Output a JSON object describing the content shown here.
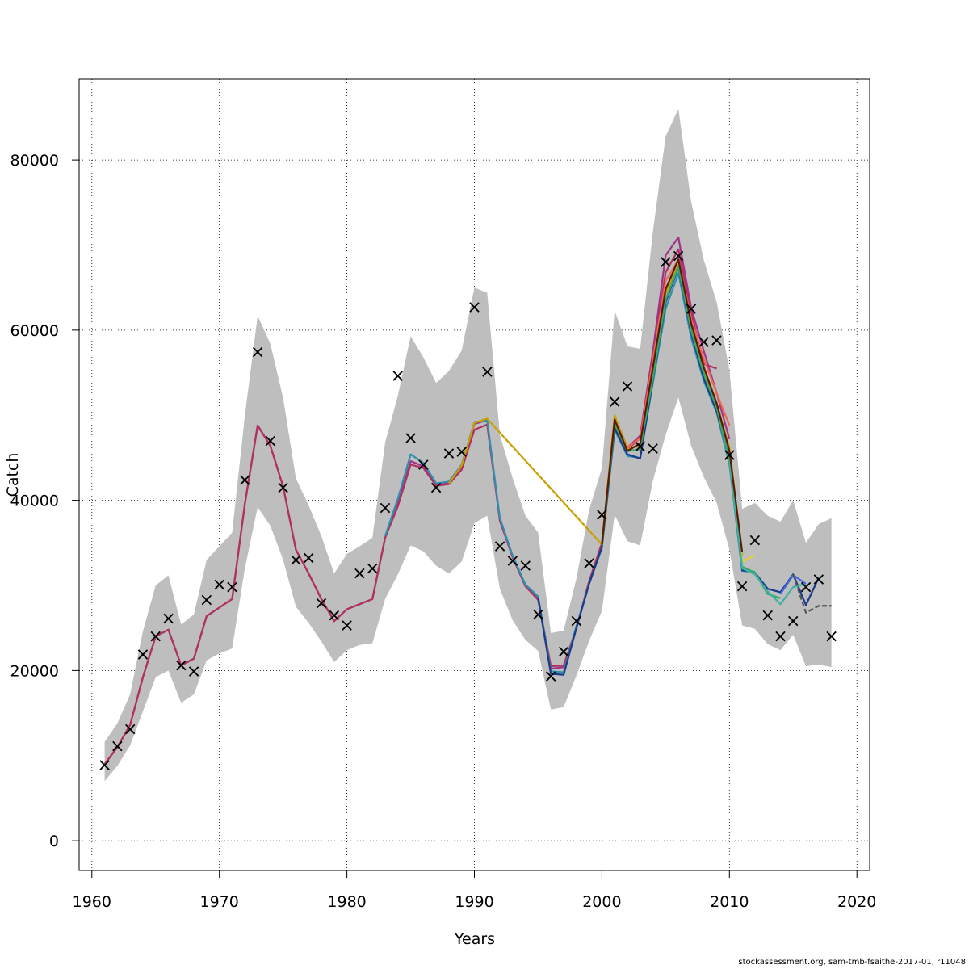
{
  "chart_data": {
    "type": "line",
    "title": "",
    "xlabel": "Years",
    "ylabel": "Catch",
    "xlim": [
      1959,
      2021
    ],
    "ylim": [
      -3500,
      89500
    ],
    "x_ticks": [
      1960,
      1970,
      1980,
      1990,
      2000,
      2010,
      2020
    ],
    "y_ticks": [
      0,
      20000,
      40000,
      60000,
      80000
    ],
    "x_tick_labels": [
      "1960",
      "1970",
      "1980",
      "1990",
      "2000",
      "2010",
      "2020"
    ],
    "y_tick_labels": [
      "0",
      "20000",
      "40000",
      "60000",
      "80000"
    ],
    "grid": true,
    "band_color": "#bebebe",
    "confidence_band": {
      "x": [
        1961,
        1962,
        1963,
        1964,
        1965,
        1966,
        1967,
        1968,
        1969,
        1970,
        1971,
        1972,
        1973,
        1974,
        1975,
        1976,
        1977,
        1978,
        1979,
        1980,
        1981,
        1982,
        1983,
        1984,
        1985,
        1986,
        1987,
        1988,
        1989,
        1990,
        1991,
        1992,
        1993,
        1994,
        1995,
        1996,
        1997,
        1998,
        1999,
        2000,
        2001,
        2002,
        2003,
        2004,
        2005,
        2006,
        2007,
        2008,
        2009,
        2010,
        2011,
        2012,
        2013,
        2014,
        2015,
        2016,
        2017,
        2018
      ],
      "lower": [
        7000,
        8800,
        11200,
        15200,
        19200,
        20000,
        16200,
        17200,
        21200,
        22000,
        22600,
        32000,
        39200,
        37000,
        33000,
        27500,
        25600,
        23400,
        21000,
        22400,
        23000,
        23200,
        28400,
        31300,
        34700,
        34000,
        32300,
        31400,
        32800,
        37300,
        38200,
        29600,
        25900,
        23600,
        22300,
        15400,
        15700,
        19400,
        23500,
        27000,
        38300,
        35200,
        34700,
        42300,
        47700,
        52100,
        46400,
        42700,
        39700,
        34200,
        25300,
        24900,
        23100,
        22400,
        24200,
        20500,
        20700,
        20400
      ],
      "upper": [
        11600,
        13800,
        17200,
        24600,
        30000,
        31200,
        25400,
        26600,
        33000,
        34600,
        36200,
        50000,
        61700,
        58400,
        52000,
        42600,
        39400,
        35800,
        31400,
        33700,
        34600,
        35600,
        46800,
        52300,
        59300,
        56800,
        53800,
        55200,
        57600,
        65000,
        64400,
        47700,
        42600,
        38200,
        36200,
        24400,
        24700,
        30800,
        38900,
        43800,
        62300,
        58100,
        57800,
        71600,
        82800,
        86000,
        75100,
        68200,
        63300,
        55300,
        39000,
        39700,
        38200,
        37500,
        40000,
        35000,
        37200,
        37900
      ]
    },
    "observed_label": "×",
    "observed": {
      "x": [
        1961,
        1962,
        1963,
        1964,
        1965,
        1966,
        1967,
        1968,
        1969,
        1970,
        1971,
        1972,
        1973,
        1974,
        1975,
        1976,
        1977,
        1978,
        1979,
        1980,
        1981,
        1982,
        1983,
        1984,
        1985,
        1986,
        1987,
        1988,
        1989,
        1990,
        1991,
        1992,
        1993,
        1994,
        1995,
        1996,
        1997,
        1998,
        1999,
        2000,
        2001,
        2002,
        2003,
        2004,
        2005,
        2006,
        2007,
        2008,
        2009,
        2010,
        2011,
        2012,
        2013,
        2014,
        2015,
        2016,
        2017,
        2018
      ],
      "y": [
        9000,
        11200,
        13200,
        22000,
        24100,
        26200,
        20700,
        20000,
        28400,
        30200,
        29900,
        42500,
        57500,
        47100,
        41600,
        33100,
        33300,
        28000,
        26600,
        25400,
        31500,
        32100,
        39200,
        54700,
        47400,
        44300,
        41600,
        45600,
        45800,
        62800,
        55200,
        34700,
        33000,
        32400,
        26700,
        19400,
        22300,
        25900,
        32700,
        38400,
        51700,
        53500,
        46400,
        46200,
        68100,
        68800,
        62600,
        58700,
        58900,
        45400,
        30000,
        35400,
        26600,
        24100,
        25900,
        29900,
        30800,
        24100
      ]
    },
    "series": [
      {
        "color": "#a0338a",
        "x": [
          1961,
          1962,
          1963,
          1964,
          1965,
          1966,
          1967,
          1968,
          1969,
          1970,
          1971,
          1972,
          1973,
          1974,
          1975,
          1976,
          1977,
          1978,
          1979,
          1980,
          1981,
          1982,
          1983,
          1984,
          1985,
          1986,
          1987,
          1988,
          1989,
          1990,
          1991,
          1992,
          1993,
          1994,
          1995,
          1996,
          1997,
          1998,
          1999,
          2000,
          2001,
          2002,
          2003,
          2004,
          2005,
          2006,
          2007,
          2008,
          2009,
          2010
        ],
        "values": [
          9000,
          11000,
          13600,
          19200,
          24000,
          24800,
          20600,
          21400,
          26400,
          27400,
          28400,
          39600,
          48800,
          46400,
          41600,
          34200,
          31400,
          28400,
          25800,
          27200,
          27800,
          28400,
          35600,
          39600,
          44600,
          44000,
          41800,
          42000,
          44000,
          49000,
          49400,
          37600,
          33400,
          30000,
          28400,
          20200,
          20400,
          25000,
          30400,
          34800,
          49600,
          46200,
          47600,
          57500,
          68800,
          70900,
          62600,
          57500,
          52600,
          47200
        ]
      },
      {
        "color": "#b03060",
        "x": [
          1961,
          1962,
          1963,
          1964,
          1965,
          1966,
          1967,
          1968,
          1969,
          1970,
          1971,
          1972,
          1973,
          1974,
          1975,
          1976,
          1977,
          1978,
          1979,
          1980,
          1981,
          1982,
          1983,
          1984,
          1985,
          1986,
          1987,
          1988,
          1989,
          1990,
          1991,
          1992,
          1993,
          1994,
          1995,
          1996,
          1997,
          1998,
          1999,
          2000,
          2001,
          2002,
          2003,
          2004,
          2005,
          2006,
          2007,
          2008,
          2009
        ],
        "values": [
          9000,
          11000,
          13600,
          19200,
          24000,
          24800,
          20600,
          21400,
          26400,
          27400,
          28400,
          39600,
          48800,
          46400,
          41600,
          34200,
          31400,
          28400,
          25800,
          27200,
          27800,
          28400,
          35600,
          39300,
          44200,
          43800,
          41700,
          41900,
          43600,
          48300,
          48900,
          37600,
          33300,
          29900,
          28300,
          20500,
          20600,
          25000,
          30500,
          35000,
          49300,
          46000,
          47300,
          56800,
          66800,
          69500,
          62000,
          56000,
          55500
        ]
      },
      {
        "color": "#ee6a50",
        "x": [
          2000,
          2001,
          2002,
          2003,
          2004,
          2005,
          2006,
          2007,
          2008,
          2009,
          2010
        ],
        "values": [
          34800,
          49900,
          46200,
          47300,
          56400,
          65800,
          68300,
          61300,
          56600,
          52600,
          48800
        ]
      },
      {
        "color": "#2f8fb0",
        "x": [
          1983,
          1984,
          1985,
          1986,
          1987,
          1988,
          1989,
          1990,
          1991,
          1992,
          1993,
          1994,
          1995,
          1996,
          1997,
          1998,
          1999,
          2000,
          2001,
          2002,
          2003,
          2004,
          2005,
          2006,
          2007,
          2008,
          2009,
          2010,
          2011,
          2012
        ],
        "values": [
          35800,
          40200,
          45400,
          44400,
          42000,
          42200,
          44200,
          49200,
          49400,
          37900,
          33500,
          30100,
          28700,
          19900,
          19800,
          25200,
          30200,
          34400,
          48300,
          45200,
          45000,
          53800,
          62500,
          66700,
          59100,
          54000,
          50300,
          44200,
          31700,
          31600
        ]
      },
      {
        "color": "#1a3a8a",
        "x": [
          1995,
          1996,
          1997,
          1998,
          1999,
          2000,
          2001,
          2002,
          2003,
          2004,
          2005,
          2006,
          2007,
          2008,
          2009,
          2010,
          2011,
          2012,
          2013,
          2014,
          2015,
          2016,
          2017
        ],
        "values": [
          28500,
          19600,
          19500,
          25000,
          30200,
          34500,
          48500,
          45400,
          44900,
          54200,
          63300,
          67400,
          59700,
          54300,
          50500,
          44900,
          31800,
          31500,
          29600,
          29200,
          31300,
          27700,
          30900
        ]
      },
      {
        "color": "#c8a000",
        "x": [
          1988,
          1989,
          1990,
          1991,
          2000,
          2001,
          2002,
          2003,
          2004,
          2005,
          2006,
          2007,
          2008,
          2009,
          2010,
          2011
        ],
        "values": [
          42000,
          44100,
          49100,
          49600,
          34800,
          50000,
          46000,
          46500,
          55200,
          64300,
          67700,
          60500,
          55300,
          51400,
          46200,
          33500
        ]
      },
      {
        "color": "#e0d040",
        "x": [
          2010,
          2011,
          2012
        ],
        "values": [
          45400,
          32800,
          33500
        ]
      },
      {
        "color": "#3aa86a",
        "x": [
          2000,
          2001,
          2002,
          2003,
          2004,
          2005,
          2006,
          2007,
          2008,
          2009,
          2010,
          2011,
          2012,
          2013,
          2014
        ],
        "values": [
          34700,
          49000,
          45800,
          46000,
          54400,
          63600,
          67500,
          60000,
          54800,
          50900,
          44600,
          32200,
          31500,
          29000,
          28500
        ]
      },
      {
        "color": "#40b0a0",
        "x": [
          2010,
          2011,
          2012,
          2013,
          2014,
          2015,
          2016
        ],
        "values": [
          44800,
          32000,
          31300,
          29300,
          27800,
          29800,
          30200
        ]
      },
      {
        "color": "#4169e1",
        "x": [
          2014,
          2015,
          2016
        ],
        "values": [
          29000,
          31200,
          30200
        ]
      },
      {
        "color": "#5a1a00",
        "x": [
          2000,
          2001,
          2002,
          2003,
          2004,
          2005,
          2006,
          2007,
          2008,
          2009,
          2010,
          2011
        ],
        "values": [
          34800,
          49500,
          45800,
          46700,
          55600,
          64800,
          68300,
          60800,
          55600,
          51400,
          45800,
          33900
        ]
      },
      {
        "color": "#555555",
        "dashed": true,
        "x": [
          2015,
          2016,
          2017,
          2018
        ],
        "values": [
          31300,
          26800,
          27600,
          27600
        ]
      }
    ]
  },
  "footer": "stockassessment.org, sam-tmb-fsaithe-2017-01, r11048"
}
